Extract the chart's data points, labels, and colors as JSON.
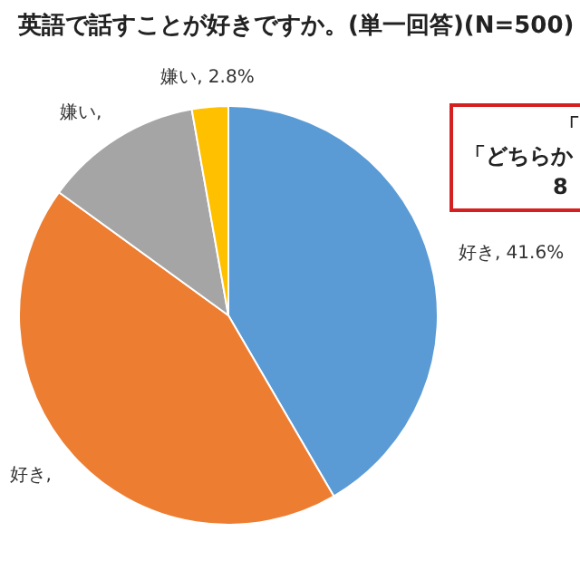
{
  "chart_data": {
    "type": "pie",
    "title": "英語で話すことが好きですか。(単一回答)(N=500)",
    "categories": [
      null,
      null,
      null,
      null
    ],
    "values": [
      41.6,
      43.4,
      12.2,
      2.8
    ],
    "colors": [
      "#5b9bd5",
      "#ed7d31",
      "#a5a5a5",
      "#ffc000"
    ],
    "value_labels": [
      "好き, 41.6%",
      "好き,",
      "嫌い,",
      "嫌い, 2.8%"
    ],
    "annotations": [
      "「",
      "「どちらか",
      "8"
    ],
    "legend": false
  }
}
